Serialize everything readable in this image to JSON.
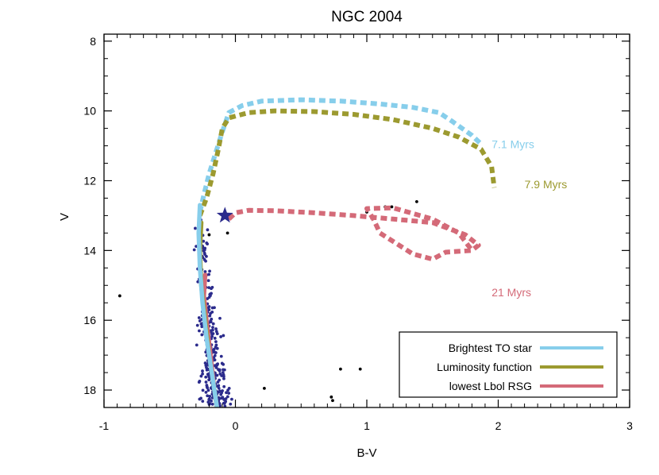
{
  "chart_data": {
    "type": "scatter",
    "title": "NGC 2004",
    "xlabel": "B-V",
    "ylabel": "V",
    "xlim": [
      -1,
      3
    ],
    "ylim": [
      18.5,
      7.8
    ],
    "y_inverted": true,
    "x_ticks": [
      -1,
      0,
      1,
      2,
      3
    ],
    "y_ticks": [
      8,
      10,
      12,
      14,
      16,
      18
    ],
    "grid": false,
    "legend_position": "bottom-right",
    "colors": {
      "members": "#2b2b8c",
      "field": "#000000",
      "iso_7_1": "#87ceeb",
      "iso_7_9": "#9c9a30",
      "iso_21": "#d46a78",
      "star": "#2b2b8c"
    },
    "isochrones": [
      {
        "label": "7.1 Myrs",
        "color": "#87ceeb",
        "label_pos": [
          1.95,
          10.95
        ],
        "points": [
          [
            -0.27,
            12.9
          ],
          [
            -0.24,
            12.4
          ],
          [
            -0.2,
            11.8
          ],
          [
            -0.15,
            11.2
          ],
          [
            -0.1,
            10.6
          ],
          [
            -0.05,
            10.05
          ],
          [
            0.05,
            9.85
          ],
          [
            0.2,
            9.72
          ],
          [
            0.5,
            9.68
          ],
          [
            0.8,
            9.72
          ],
          [
            1.1,
            9.8
          ],
          [
            1.35,
            9.9
          ],
          [
            1.55,
            10.05
          ],
          [
            1.65,
            10.3
          ],
          [
            1.8,
            10.7
          ],
          [
            1.87,
            10.95
          ]
        ]
      },
      {
        "label": "7.9 Myrs",
        "color": "#9c9a30",
        "label_pos": [
          2.2,
          12.1
        ],
        "points": [
          [
            -0.27,
            13.0
          ],
          [
            -0.22,
            12.5
          ],
          [
            -0.17,
            11.8
          ],
          [
            -0.13,
            11.1
          ],
          [
            -0.1,
            10.5
          ],
          [
            -0.05,
            10.2
          ],
          [
            0.1,
            10.05
          ],
          [
            0.3,
            10.0
          ],
          [
            0.6,
            10.02
          ],
          [
            0.9,
            10.1
          ],
          [
            1.2,
            10.25
          ],
          [
            1.5,
            10.5
          ],
          [
            1.7,
            10.75
          ],
          [
            1.87,
            11.1
          ],
          [
            1.95,
            11.6
          ],
          [
            1.97,
            12.2
          ]
        ]
      },
      {
        "label": "21 Myrs",
        "color": "#d46a78",
        "label_pos": [
          1.95,
          15.2
        ],
        "points": [
          [
            -0.05,
            13.1
          ],
          [
            0.0,
            12.92
          ],
          [
            0.1,
            12.85
          ],
          [
            0.3,
            12.86
          ],
          [
            0.6,
            12.92
          ],
          [
            0.9,
            13.0
          ],
          [
            1.2,
            13.1
          ],
          [
            1.5,
            13.2
          ],
          [
            1.75,
            13.55
          ],
          [
            1.85,
            13.85
          ],
          [
            1.8,
            14.0
          ],
          [
            1.6,
            14.05
          ],
          [
            1.5,
            14.25
          ],
          [
            1.35,
            14.1
          ],
          [
            1.1,
            13.5
          ],
          [
            1.05,
            13.1
          ],
          [
            1.0,
            12.8
          ],
          [
            1.2,
            12.78
          ],
          [
            1.5,
            13.1
          ],
          [
            1.7,
            13.5
          ],
          [
            1.8,
            14.0
          ]
        ]
      }
    ],
    "tracks": [
      {
        "name": "Brightest TO star",
        "color": "#87ceeb",
        "points": [
          [
            -0.27,
            12.7
          ],
          [
            -0.28,
            13.5
          ],
          [
            -0.27,
            14.5
          ],
          [
            -0.25,
            15.5
          ],
          [
            -0.22,
            16.5
          ],
          [
            -0.18,
            17.5
          ],
          [
            -0.14,
            18.5
          ]
        ]
      },
      {
        "name": "Luminosity function",
        "color": "#9c9a30",
        "points": [
          [
            -0.26,
            13.2
          ],
          [
            -0.27,
            14.0
          ],
          [
            -0.26,
            15.0
          ],
          [
            -0.23,
            16.0
          ],
          [
            -0.2,
            17.0
          ],
          [
            -0.16,
            18.0
          ],
          [
            -0.14,
            18.5
          ]
        ]
      },
      {
        "name": "lowest Lbol RSG",
        "color": "#d46a78",
        "points": [
          [
            -0.23,
            14.7
          ],
          [
            -0.24,
            15.3
          ],
          [
            -0.22,
            16.0
          ],
          [
            -0.19,
            17.0
          ],
          [
            -0.16,
            18.0
          ],
          [
            -0.14,
            18.5
          ]
        ]
      }
    ],
    "marker_star": {
      "x": -0.08,
      "y": 13.0,
      "color": "#2b2b8c"
    },
    "field_stars": [
      [
        -0.88,
        15.3
      ],
      [
        1.0,
        12.9
      ],
      [
        1.14,
        12.75
      ],
      [
        1.19,
        12.75
      ],
      [
        1.38,
        12.6
      ],
      [
        0.8,
        17.4
      ],
      [
        0.95,
        17.4
      ],
      [
        0.22,
        17.95
      ],
      [
        0.73,
        18.2
      ],
      [
        0.74,
        18.3
      ],
      [
        -0.06,
        13.5
      ],
      [
        -0.2,
        13.55
      ]
    ],
    "members": {
      "count": 300,
      "v_range": [
        13.1,
        18.5
      ],
      "bv_center_at_v13": -0.27,
      "bv_center_at_v18_5": -0.15,
      "bv_spread": 0.08
    },
    "legend": [
      {
        "label": "Brightest TO star",
        "color": "#87ceeb"
      },
      {
        "label": "Luminosity function",
        "color": "#9c9a30"
      },
      {
        "label": "lowest Lbol RSG",
        "color": "#d46a78"
      }
    ]
  }
}
